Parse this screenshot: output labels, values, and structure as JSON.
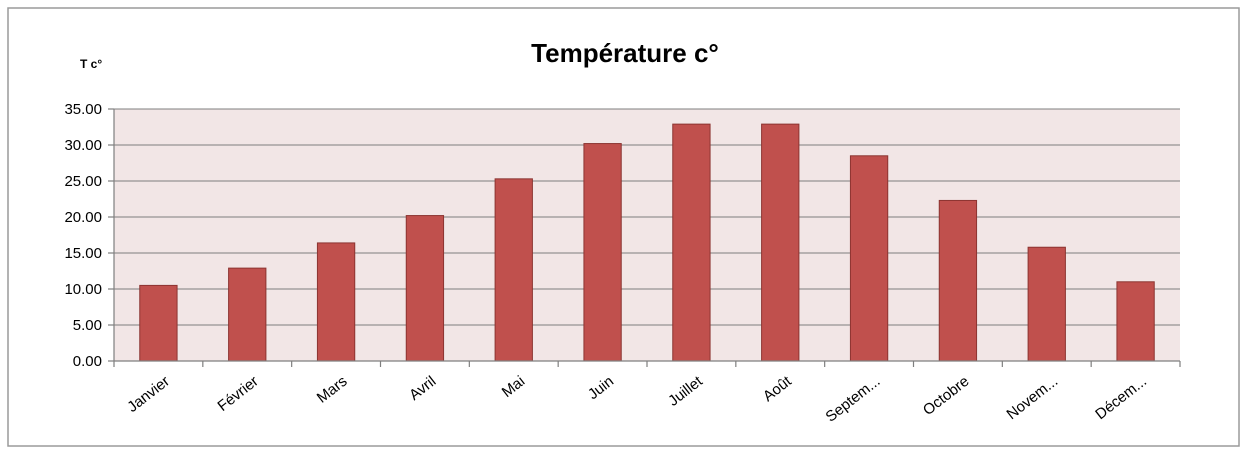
{
  "chart_data": {
    "type": "bar",
    "title": "Température c°",
    "ylabel": "T c°",
    "xlabel": "",
    "categories": [
      "Janvier",
      "Février",
      "Mars",
      "Avril",
      "Mai",
      "Juin",
      "Juillet",
      "Août",
      "Septem...",
      "Octobre",
      "Novem...",
      "Décem..."
    ],
    "values": [
      10.5,
      12.9,
      16.4,
      20.2,
      25.3,
      30.2,
      32.9,
      32.9,
      28.5,
      22.3,
      15.8,
      11.0
    ],
    "ylim": [
      0,
      35
    ],
    "yticks": [
      "0.00",
      "5.00",
      "10.00",
      "15.00",
      "20.00",
      "25.00",
      "30.00",
      "35.00"
    ],
    "grid": true,
    "legend": "none",
    "colors": {
      "bar": "#c0504d",
      "bar_border": "#8c3431",
      "plot_background": "#f2e6e6",
      "gridline": "#7f7f7f"
    }
  }
}
